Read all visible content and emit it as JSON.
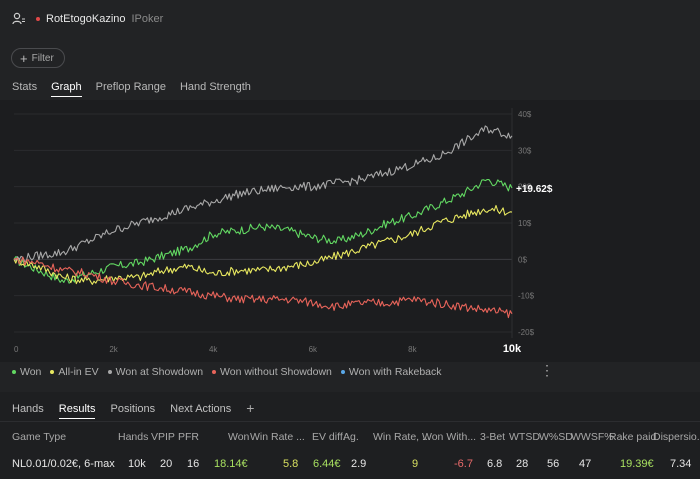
{
  "header": {
    "username": "RotEtogoKazino",
    "site": "IPoker"
  },
  "filter": {
    "label": "Filter"
  },
  "tabs": [
    {
      "label": "Stats",
      "active": false
    },
    {
      "label": "Graph",
      "active": true
    },
    {
      "label": "Preflop Range",
      "active": false
    },
    {
      "label": "Hand Strength",
      "active": false
    }
  ],
  "chart_data": {
    "type": "line",
    "x_range": [
      0,
      10000
    ],
    "x_ticks": [
      "0",
      "2k",
      "4k",
      "6k",
      "8k",
      "10k"
    ],
    "y_ticks": [
      "40$",
      "30$",
      "20$",
      "10$",
      "0$",
      "-10$",
      "-20$"
    ],
    "ylim": [
      -20,
      40
    ],
    "end_label": "+19.62$",
    "series": [
      {
        "name": "Won",
        "color": "#62d862",
        "x": [
          0,
          500,
          1000,
          1500,
          2000,
          2500,
          3000,
          3500,
          4000,
          4500,
          5000,
          5500,
          6000,
          6500,
          7000,
          7500,
          8000,
          8500,
          9000,
          9500,
          10000
        ],
        "y": [
          0,
          -3,
          -6,
          -4,
          -2,
          -1,
          1,
          3,
          7,
          8,
          9,
          8,
          6,
          5,
          7,
          10,
          12,
          15,
          18,
          22,
          19.62
        ]
      },
      {
        "name": "All-in EV",
        "color": "#e8e860",
        "x": [
          0,
          500,
          1000,
          1500,
          2000,
          2500,
          3000,
          3500,
          4000,
          4500,
          5000,
          5500,
          6000,
          6500,
          7000,
          7500,
          8000,
          8500,
          9000,
          9500,
          10000
        ],
        "y": [
          0,
          -2,
          -5,
          -6,
          -5,
          -5,
          -3,
          -2,
          -4,
          -3,
          -3,
          -2,
          -1,
          1,
          3,
          5,
          7,
          10,
          12,
          14,
          13
        ]
      },
      {
        "name": "Won at Showdown",
        "color": "#a8a8a8",
        "x": [
          0,
          500,
          1000,
          1500,
          2000,
          2500,
          3000,
          3500,
          4000,
          4500,
          5000,
          5500,
          6000,
          6500,
          7000,
          7500,
          8000,
          8500,
          9000,
          9500,
          10000
        ],
        "y": [
          0,
          1,
          2,
          5,
          8,
          10,
          12,
          14,
          16,
          18,
          19,
          20,
          20,
          21,
          22,
          24,
          26,
          28,
          32,
          36,
          34
        ]
      },
      {
        "name": "Won without Showdown",
        "color": "#e8645a",
        "x": [
          0,
          500,
          1000,
          1500,
          2000,
          2500,
          3000,
          3500,
          4000,
          4500,
          5000,
          5500,
          6000,
          6500,
          7000,
          7500,
          8000,
          8500,
          9000,
          9500,
          10000
        ],
        "y": [
          0,
          -1,
          -3,
          -4,
          -6,
          -7,
          -8,
          -9,
          -10,
          -11,
          -11,
          -11,
          -12,
          -13,
          -12,
          -12,
          -11,
          -12,
          -13,
          -14,
          -15
        ]
      },
      {
        "name": "Won with Rakeback",
        "color": "#5aa8e8"
      }
    ]
  },
  "legend_more": "⋮",
  "bottom_tabs": [
    {
      "label": "Hands",
      "active": false
    },
    {
      "label": "Results",
      "active": true
    },
    {
      "label": "Positions",
      "active": false
    },
    {
      "label": "Next Actions",
      "active": false
    },
    {
      "label": "+",
      "active": false
    }
  ],
  "table": {
    "headers": {
      "game_type": "Game Type",
      "hands": "Hands",
      "vpip": "VPIP",
      "pfr": "PFR",
      "won": "Won",
      "win_rate": "Win Rate ...",
      "ev_diff": "EV diff.",
      "ag": "Ag.",
      "win_rate2": "Win Rate, ...",
      "won_with": "Won With...",
      "bet3": "3-Bet",
      "wtsd": "WTSD",
      "wsd": "W%SD",
      "wwsf": "WWSF%",
      "rake": "Rake paid",
      "disp": "Dispersio..."
    },
    "row": {
      "game_type": "NL0.01/0.02€, 6-max",
      "hands": "10k",
      "vpip": "20",
      "pfr": "16",
      "won": "18.14€",
      "win_rate": "5.8",
      "ev_diff": "6.44€",
      "ag": "2.9",
      "win_rate2": "9",
      "won_with": "-6.7",
      "bet3": "6.8",
      "wtsd": "28",
      "wsd": "56",
      "wwsf": "47",
      "rake": "19.39€",
      "disp": "7.34"
    }
  }
}
